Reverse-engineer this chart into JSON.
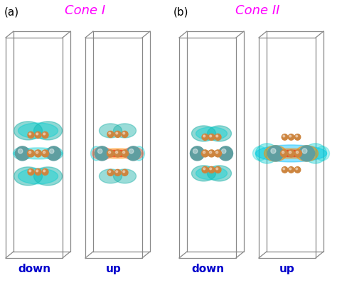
{
  "title_a": "Cone I",
  "title_b": "Cone II",
  "label_a": "(a)",
  "label_b": "(b)",
  "sub_labels": [
    "down",
    "up",
    "down",
    "up"
  ],
  "title_color": "#FF00FF",
  "sublabel_color": "#0000CC",
  "background_color": "#FFFFFF",
  "box_color": "#888888",
  "figsize": [
    4.74,
    4.01
  ],
  "dpi": 100,
  "teal_atom": "#5F9EA0",
  "orange_atom": "#CD853F",
  "green_bond": "#2E8B57",
  "cyan_iso": "#00CED1",
  "red_hot": "#FF0000",
  "yellow_hot": "#FFD700",
  "orange_hot": "#FF8C00"
}
